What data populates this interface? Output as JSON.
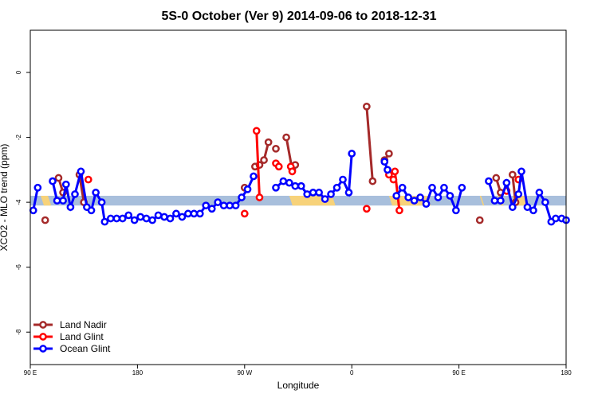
{
  "chart_data": {
    "type": "line",
    "title": "5S-0 October (Ver 9)   2014-09-06 to 2018-12-31",
    "xlabel": "Longitude",
    "ylabel": "XCO2 - MLO trend (ppm)",
    "xlim": [
      -90,
      270
    ],
    "ylim": [
      -9,
      1.3
    ],
    "x_ticks": [
      {
        "value": -90,
        "label": "90 E"
      },
      {
        "value": -18,
        "label": "180"
      },
      {
        "value": 54,
        "label": "90 W"
      },
      {
        "value": 126,
        "label": "0"
      },
      {
        "value": 198,
        "label": "90 E"
      },
      {
        "value": 270,
        "label": "180"
      }
    ],
    "y_ticks": [
      0,
      -2,
      -4,
      -6,
      -8
    ],
    "grid": false,
    "legend_position": "bottom-left",
    "band": {
      "y_low": -4.1,
      "y_high": -3.8,
      "color": "#a8bfdc",
      "highlight_color": "#f7d27a",
      "highlights": [
        [
          -83,
          -76
        ],
        [
          84,
          115
        ],
        [
          151,
          179
        ],
        [
          212,
          215
        ],
        [
          224,
          228
        ],
        [
          234,
          244
        ]
      ]
    },
    "series": [
      {
        "name": "Land Nadir",
        "color": "#a52a2a",
        "segments": [
          [
            [
              -80,
              -4.55
            ]
          ],
          [
            [
              -71,
              -3.25
            ],
            [
              -68,
              -3.7
            ]
          ],
          [
            [
              -57,
              -3.15
            ],
            [
              -54,
              -4.0
            ]
          ],
          [
            [
              54,
              -3.55
            ]
          ],
          [
            [
              61,
              -2.9
            ],
            [
              64,
              -2.85
            ],
            [
              67,
              -2.7
            ],
            [
              70,
              -2.15
            ]
          ],
          [
            [
              75,
              -2.35
            ]
          ],
          [
            [
              82,
              -2.0
            ],
            [
              86,
              -3.0
            ],
            [
              88,
              -2.85
            ]
          ],
          [
            [
              136,
              -1.05
            ],
            [
              140,
              -3.35
            ]
          ],
          [
            [
              148,
              -2.7
            ],
            [
              151,
              -2.5
            ]
          ],
          [
            [
              212,
              -4.55
            ]
          ],
          [
            [
              223,
              -3.25
            ],
            [
              226,
              -3.7
            ]
          ],
          [
            [
              234,
              -3.15
            ],
            [
              236,
              -4.0
            ]
          ]
        ]
      },
      {
        "name": "Land Glint",
        "color": "#ff0000",
        "segments": [
          [
            [
              -51,
              -3.3
            ]
          ],
          [
            [
              54,
              -4.35
            ]
          ],
          [
            [
              62,
              -1.8
            ],
            [
              64,
              -3.85
            ]
          ],
          [
            [
              75,
              -2.8
            ],
            [
              77,
              -2.9
            ]
          ],
          [
            [
              85,
              -2.9
            ],
            [
              86,
              -3.05
            ]
          ],
          [
            [
              136,
              -4.2
            ]
          ],
          [
            [
              151,
              -3.15
            ],
            [
              154,
              -3.3
            ]
          ],
          [
            [
              155,
              -3.05
            ],
            [
              158,
              -4.25
            ]
          ],
          [
            [
              230,
              -3.65
            ]
          ],
          [
            [
              238,
              -3.3
            ]
          ]
        ]
      },
      {
        "name": "Ocean Glint",
        "color": "#0000ff",
        "segments": [
          [
            [
              -88,
              -4.25
            ],
            [
              -85,
              -3.55
            ]
          ],
          [
            [
              -75,
              -3.35
            ],
            [
              -72,
              -3.95
            ],
            [
              -68,
              -3.95
            ],
            [
              -66,
              -3.45
            ],
            [
              -63,
              -4.15
            ],
            [
              -60,
              -3.75
            ],
            [
              -56,
              -3.05
            ],
            [
              -52,
              -4.15
            ],
            [
              -49,
              -4.25
            ],
            [
              -46,
              -3.7
            ],
            [
              -42,
              -4.0
            ],
            [
              -40,
              -4.6
            ],
            [
              -36,
              -4.5
            ],
            [
              -32,
              -4.5
            ],
            [
              -28,
              -4.5
            ],
            [
              -24,
              -4.4
            ],
            [
              -20,
              -4.55
            ],
            [
              -16,
              -4.45
            ],
            [
              -12,
              -4.5
            ],
            [
              -8,
              -4.55
            ],
            [
              -4,
              -4.4
            ],
            [
              0,
              -4.45
            ],
            [
              4,
              -4.5
            ],
            [
              8,
              -4.35
            ],
            [
              12,
              -4.45
            ],
            [
              16,
              -4.35
            ],
            [
              20,
              -4.35
            ],
            [
              24,
              -4.35
            ],
            [
              28,
              -4.1
            ],
            [
              32,
              -4.2
            ],
            [
              36,
              -4.0
            ],
            [
              40,
              -4.1
            ],
            [
              44,
              -4.1
            ],
            [
              48,
              -4.1
            ],
            [
              52,
              -3.85
            ],
            [
              56,
              -3.6
            ],
            [
              60,
              -3.2
            ]
          ],
          [
            [
              75,
              -3.55
            ],
            [
              80,
              -3.35
            ],
            [
              84,
              -3.4
            ],
            [
              88,
              -3.5
            ],
            [
              92,
              -3.5
            ],
            [
              96,
              -3.75
            ],
            [
              100,
              -3.7
            ],
            [
              104,
              -3.7
            ],
            [
              108,
              -3.9
            ],
            [
              112,
              -3.75
            ],
            [
              116,
              -3.55
            ],
            [
              120,
              -3.3
            ],
            [
              124,
              -3.7
            ],
            [
              126,
              -2.5
            ]
          ],
          [
            [
              148,
              -2.75
            ],
            [
              150,
              -3.0
            ]
          ],
          [
            [
              156,
              -3.8
            ],
            [
              160,
              -3.55
            ],
            [
              164,
              -3.85
            ],
            [
              168,
              -3.95
            ],
            [
              172,
              -3.85
            ],
            [
              176,
              -4.05
            ],
            [
              180,
              -3.55
            ],
            [
              184,
              -3.85
            ],
            [
              188,
              -3.55
            ],
            [
              192,
              -3.8
            ],
            [
              196,
              -4.25
            ],
            [
              200,
              -3.55
            ]
          ],
          [
            [
              218,
              -3.35
            ],
            [
              222,
              -3.95
            ],
            [
              226,
              -3.95
            ],
            [
              230,
              -3.4
            ],
            [
              234,
              -4.15
            ],
            [
              238,
              -3.75
            ],
            [
              240,
              -3.05
            ],
            [
              244,
              -4.15
            ],
            [
              248,
              -4.25
            ],
            [
              252,
              -3.7
            ],
            [
              256,
              -4.0
            ],
            [
              260,
              -4.6
            ],
            [
              263,
              -4.5
            ],
            [
              267,
              -4.5
            ],
            [
              270,
              -4.55
            ]
          ]
        ]
      }
    ]
  }
}
